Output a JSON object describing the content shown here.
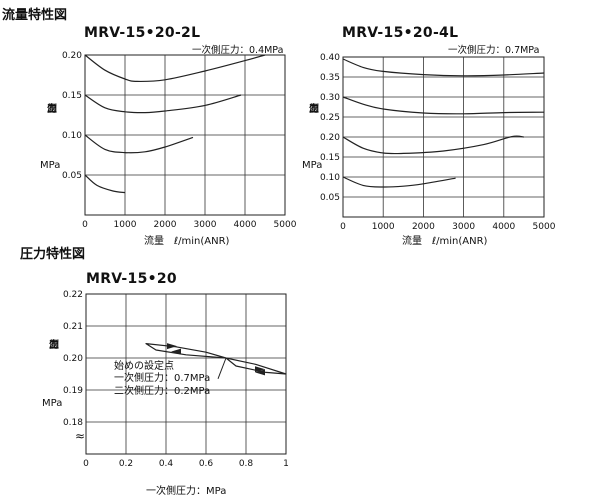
{
  "sections": {
    "flow_title": "流量特性図",
    "pressure_title": "圧力特性図"
  },
  "chart_data": [
    {
      "type": "line",
      "title": "MRV-15•20-2L",
      "note": "一次側圧力：0.4MPa",
      "xlabel": "流量　ℓ/min(ANR)",
      "ylabel_chars": [
        "二",
        "次",
        "側",
        "圧",
        "力"
      ],
      "yunit": "MPa",
      "xlim": [
        0,
        5000
      ],
      "ylim": [
        0.0,
        0.2
      ],
      "x_ticks": [
        "0",
        "1000",
        "2000",
        "3000",
        "4000",
        "5000"
      ],
      "y_ticks": [
        "0.05",
        "0.10",
        "0.15",
        "0.20"
      ],
      "grid": true,
      "series": [
        {
          "points": [
            [
              0,
              0.2
            ],
            [
              500,
              0.181
            ],
            [
              1000,
              0.17
            ],
            [
              1300,
              0.167
            ],
            [
              2000,
              0.169
            ],
            [
              3000,
              0.18
            ],
            [
              4000,
              0.193
            ],
            [
              4500,
              0.2
            ]
          ]
        },
        {
          "points": [
            [
              0,
              0.15
            ],
            [
              500,
              0.134
            ],
            [
              1000,
              0.129
            ],
            [
              1500,
              0.128
            ],
            [
              2000,
              0.13
            ],
            [
              3000,
              0.137
            ],
            [
              3900,
              0.15
            ]
          ]
        },
        {
          "points": [
            [
              0,
              0.1
            ],
            [
              500,
              0.082
            ],
            [
              1000,
              0.078
            ],
            [
              1500,
              0.079
            ],
            [
              2000,
              0.085
            ],
            [
              2700,
              0.097
            ]
          ]
        },
        {
          "points": [
            [
              0,
              0.05
            ],
            [
              300,
              0.037
            ],
            [
              700,
              0.03
            ],
            [
              1000,
              0.028
            ]
          ]
        }
      ]
    },
    {
      "type": "line",
      "title": "MRV-15•20-4L",
      "note": "一次側圧力：0.7MPa",
      "xlabel": "流量　ℓ/min(ANR)",
      "ylabel_chars": [
        "二",
        "次",
        "側",
        "圧",
        "力"
      ],
      "yunit": "MPa",
      "xlim": [
        0,
        5000
      ],
      "ylim": [
        0.0,
        0.4
      ],
      "x_ticks": [
        "0",
        "1000",
        "2000",
        "3000",
        "4000",
        "5000"
      ],
      "y_ticks": [
        "0.05",
        "0.10",
        "0.15",
        "0.20",
        "0.25",
        "0.30",
        "0.35",
        "0.40"
      ],
      "grid": true,
      "series": [
        {
          "points": [
            [
              0,
              0.395
            ],
            [
              500,
              0.374
            ],
            [
              1000,
              0.364
            ],
            [
              2000,
              0.356
            ],
            [
              3000,
              0.353
            ],
            [
              4000,
              0.355
            ],
            [
              5000,
              0.36
            ]
          ]
        },
        {
          "points": [
            [
              0,
              0.3
            ],
            [
              500,
              0.282
            ],
            [
              1000,
              0.27
            ],
            [
              2000,
              0.26
            ],
            [
              3000,
              0.258
            ],
            [
              4000,
              0.261
            ],
            [
              5000,
              0.262
            ]
          ]
        },
        {
          "points": [
            [
              0,
              0.2
            ],
            [
              500,
              0.172
            ],
            [
              1000,
              0.16
            ],
            [
              1500,
              0.159
            ],
            [
              2500,
              0.165
            ],
            [
              3500,
              0.181
            ],
            [
              4200,
              0.201
            ],
            [
              4500,
              0.2
            ]
          ]
        },
        {
          "points": [
            [
              0,
              0.1
            ],
            [
              500,
              0.079
            ],
            [
              1000,
              0.075
            ],
            [
              1500,
              0.077
            ],
            [
              2000,
              0.083
            ],
            [
              2800,
              0.097
            ]
          ]
        }
      ]
    },
    {
      "type": "line",
      "title": "MRV-15•20",
      "xlabel": "一次側圧力：MPa",
      "ylabel_chars": [
        "二",
        "次",
        "側",
        "圧",
        "力"
      ],
      "yunit": "MPa",
      "xlim": [
        0,
        1
      ],
      "ylim": [
        0.17,
        0.22
      ],
      "x_ticks": [
        "0",
        "0.2",
        "0.4",
        "0.6",
        "0.8",
        "1"
      ],
      "y_ticks": [
        "0.18",
        "0.19",
        "0.20",
        "0.21",
        "0.22"
      ],
      "axis_break": "≈",
      "grid": true,
      "annotations": [
        "始めの設定点",
        "一次側圧力：0.7MPa",
        "二次側圧力：0.2MPa"
      ],
      "set_point": [
        0.7,
        0.2
      ],
      "series": [
        {
          "points": [
            [
              0.7,
              0.2
            ],
            [
              0.6,
              0.2018
            ],
            [
              0.45,
              0.2035
            ],
            [
              0.3,
              0.2045
            ],
            [
              0.35,
              0.2025
            ],
            [
              0.5,
              0.201
            ],
            [
              0.7,
              0.2
            ],
            [
              0.85,
              0.198
            ],
            [
              1.0,
              0.195
            ],
            [
              0.9,
              0.1955
            ],
            [
              0.75,
              0.1975
            ],
            [
              0.7,
              0.2
            ]
          ]
        }
      ]
    }
  ]
}
